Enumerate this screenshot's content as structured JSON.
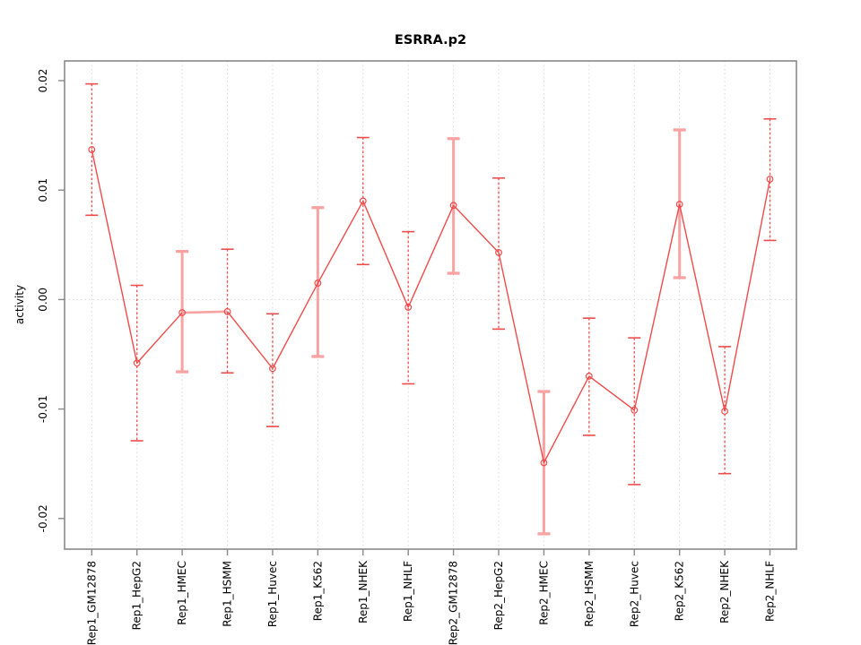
{
  "title": "ESRRA.p2",
  "y_axis_label": "activity",
  "chart_data": {
    "type": "line",
    "title": "ESRRA.p2",
    "xlabel": "",
    "ylabel": "activity",
    "legend_position": "none",
    "grid": {
      "vertical_dotted_per_category": true,
      "horizontal_dotted_at_zero": true
    },
    "categories": [
      "Rep1_GM12878",
      "Rep1_HepG2",
      "Rep1_HMEC",
      "Rep1_HSMM",
      "Rep1_Huvec",
      "Rep1_K562",
      "Rep1_NHEK",
      "Rep1_NHLF",
      "Rep2_GM12878",
      "Rep2_HepG2",
      "Rep2_HMEC",
      "Rep2_HSMM",
      "Rep2_Huvec",
      "Rep2_K562",
      "Rep2_NHEK",
      "Rep2_NHLF"
    ],
    "series": [
      {
        "name": "activity",
        "marker": "open-circle",
        "values": [
          0.0137,
          -0.0058,
          -0.0012,
          -0.0011,
          -0.0063,
          0.0015,
          0.009,
          -0.0007,
          0.0086,
          0.0043,
          -0.0149,
          -0.007,
          -0.0101,
          0.0087,
          -0.0102,
          0.011
        ],
        "error_low": [
          0.0077,
          -0.0129,
          -0.0066,
          -0.0067,
          -0.0116,
          -0.0052,
          0.0032,
          -0.0077,
          0.0024,
          -0.0027,
          -0.0214,
          -0.0124,
          -0.0169,
          0.002,
          -0.0159,
          0.0054
        ],
        "error_high": [
          0.0197,
          0.0013,
          0.0044,
          0.0046,
          -0.0013,
          0.0084,
          0.0148,
          0.0062,
          0.0147,
          0.0111,
          -0.0084,
          -0.0017,
          -0.0035,
          0.0155,
          -0.0043,
          0.0165
        ]
      }
    ],
    "error_bar_styles": [
      "red",
      "red",
      "pink",
      "red",
      "red",
      "pink",
      "red",
      "red",
      "pink",
      "red",
      "pink",
      "red",
      "red",
      "pink",
      "red",
      "red"
    ],
    "pink_segments": [
      2
    ],
    "yticks": [
      "0.02",
      "0.01",
      "0.00",
      "-0.01",
      "-0.02"
    ],
    "ytick_values": [
      0.02,
      0.01,
      0.0,
      -0.01,
      -0.02
    ],
    "ylim": [
      -0.0228,
      0.0218
    ],
    "colors": {
      "line_red": "#ef4b4b",
      "line_pink": "#f8a2a2",
      "grid": "#d9d9d9",
      "axis": "#888888",
      "text": "#000000",
      "background": "#ffffff"
    }
  }
}
